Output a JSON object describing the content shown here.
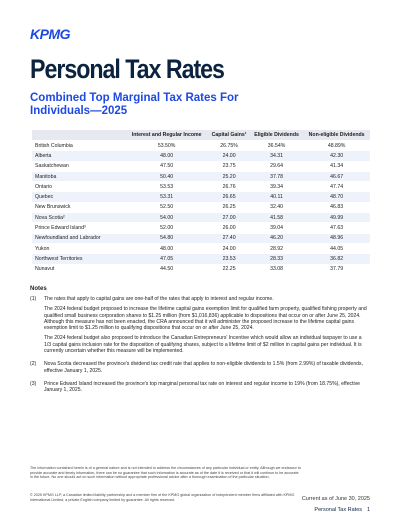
{
  "header": {
    "logo": "KPMG",
    "title": "Personal Tax Rates",
    "subtitle": "Combined Top Marginal Tax Rates For Individuals—2025"
  },
  "table": {
    "columns": [
      "Interest and Regular Income",
      "Capital Gains¹",
      "Eligible Dividends",
      "Non-eligible Dividends"
    ],
    "rows": [
      [
        "British Columbia",
        "53.50%",
        "26.75%",
        "36.54%",
        "48.89%"
      ],
      [
        "Alberta",
        "48.00",
        "24.00",
        "34.31",
        "42.30"
      ],
      [
        "Saskatchewan",
        "47.50",
        "23.75",
        "29.64",
        "41.34"
      ],
      [
        "Manitoba",
        "50.40",
        "25.20",
        "37.78",
        "46.67"
      ],
      [
        "Ontario",
        "53.53",
        "26.76",
        "39.34",
        "47.74"
      ],
      [
        "Quebec",
        "53.31",
        "26.65",
        "40.11",
        "48.70"
      ],
      [
        "New Brunswick",
        "52.50",
        "26.25",
        "32.40",
        "46.83"
      ],
      [
        "Nova Scotia²",
        "54.00",
        "27.00",
        "41.58",
        "49.99"
      ],
      [
        "Prince Edward Island³",
        "52.00",
        "26.00",
        "39.04",
        "47.63"
      ],
      [
        "Newfoundland and Labrador",
        "54.80",
        "27.40",
        "46.20",
        "48.96"
      ],
      [
        "Yukon",
        "48.00",
        "24.00",
        "28.92",
        "44.05"
      ],
      [
        "Northwest Territories",
        "47.05",
        "23.53",
        "28.33",
        "36.82"
      ],
      [
        "Nunavut",
        "44.50",
        "22.25",
        "33.08",
        "37.79"
      ]
    ]
  },
  "notes": {
    "heading": "Notes",
    "items": [
      {
        "marker": "(1)",
        "paragraphs": [
          "The rates that apply to capital gains are one-half of the rates that apply to interest and regular income.",
          "The 2024 federal budget proposed to increase the lifetime capital gains exemption limit for qualified farm property, qualified fishing property and qualified small business corporation shares to $1.25 million (from $1,016,836) applicable to dispositions that occur on or after June 25, 2024. Although this measure has not been enacted, the CRA announced that it will administer the proposed increase to the lifetime capital gains exemption limit to $1.25 million to qualifying dispositions that occur on or after June 25, 2024.",
          "The 2024 federal budget also proposed to introduce the Canadian Entrepreneurs' Incentive which would allow an individual taxpayer to use a 1/3 capital gains inclusion rate for the disposition of qualifying shares, subject to a lifetime limit of $2 million in capital gains per individual. It is currently uncertain whether this measure will be implemented."
        ]
      },
      {
        "marker": "(2)",
        "paragraphs": [
          "Nova Scotia decreased the province's dividend tax credit rate that applies to non-eligible dividends to 1.5% (from 2.99%) of taxable dividends, effective January 1, 2025."
        ]
      },
      {
        "marker": "(3)",
        "paragraphs": [
          "Prince Edward Island increased the province's top marginal personal tax rate on interest and regular income to 19% (from 18.75%), effective January 1, 2025."
        ]
      }
    ]
  },
  "footer": {
    "disclaimer": "The information contained herein is of a general nature and is not intended to address the circumstances of any particular individual or entity. Although we endeavor to provide accurate and timely information, there can be no guarantee that such information is accurate as of the date it is received or that it will continue to be accurate in the future. No one should act on such information without appropriate professional advice after a thorough examination of the particular situation.",
    "copyright": "© 2025 KPMG LLP, a Canadian limited liability partnership and a member firm of the KPMG global organization of independent member firms affiliated with KPMG International Limited, a private English company limited by guarantee. All rights reserved.",
    "date": "Current as of June 30, 2025",
    "label": "Personal Tax Rates",
    "page": "1"
  }
}
